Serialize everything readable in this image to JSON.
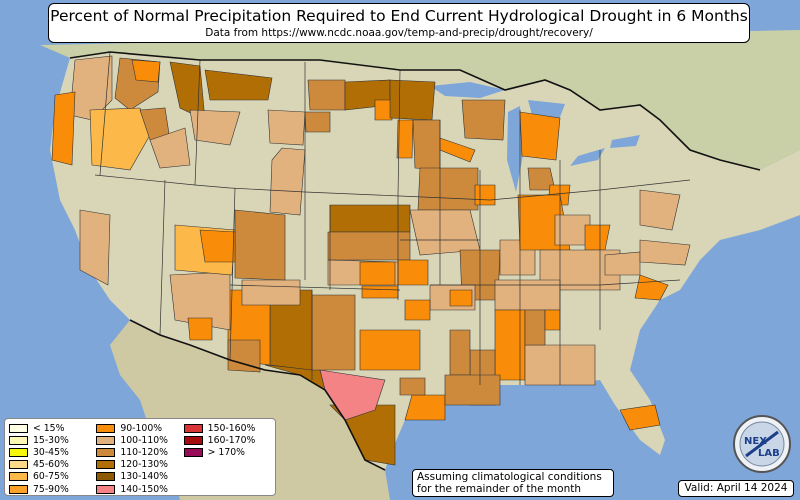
{
  "title": "Percent of Normal Precipitation Required to End Current Hydrological Drought in 6 Months",
  "subtitle": "Data from https://www.ncdc.noaa.gov/temp-and-precip/drought/recovery/",
  "note_line1": "Assuming climatological conditions",
  "note_line2": "for the remainder of the month",
  "valid": "Valid: April 14 2024",
  "logo": {
    "text_top": "NEX",
    "text_bottom": "LAB"
  },
  "colors": {
    "ocean": "#7fa6d8",
    "land": "#d9d6b8",
    "state_border": "#333333"
  },
  "legend": [
    {
      "label": "< 15%",
      "color": "#ffffe6"
    },
    {
      "label": "15-30%",
      "color": "#fdf8b4"
    },
    {
      "label": "30-45%",
      "color": "#f7f70a"
    },
    {
      "label": "45-60%",
      "color": "#ffd98a"
    },
    {
      "label": "60-75%",
      "color": "#fcb848"
    },
    {
      "label": "75-90%",
      "color": "#f9a12a"
    },
    {
      "label": "90-100%",
      "color": "#f98c08"
    },
    {
      "label": "100-110%",
      "color": "#e2b27e"
    },
    {
      "label": "110-120%",
      "color": "#cd8a3c"
    },
    {
      "label": "120-130%",
      "color": "#b06e05"
    },
    {
      "label": "130-140%",
      "color": "#8c5a04"
    },
    {
      "label": "140-150%",
      "color": "#f48386"
    },
    {
      "label": "150-160%",
      "color": "#d83636"
    },
    {
      "label": "160-170%",
      "color": "#a30d0d"
    },
    {
      "label": "> 170%",
      "color": "#990d58"
    }
  ]
}
